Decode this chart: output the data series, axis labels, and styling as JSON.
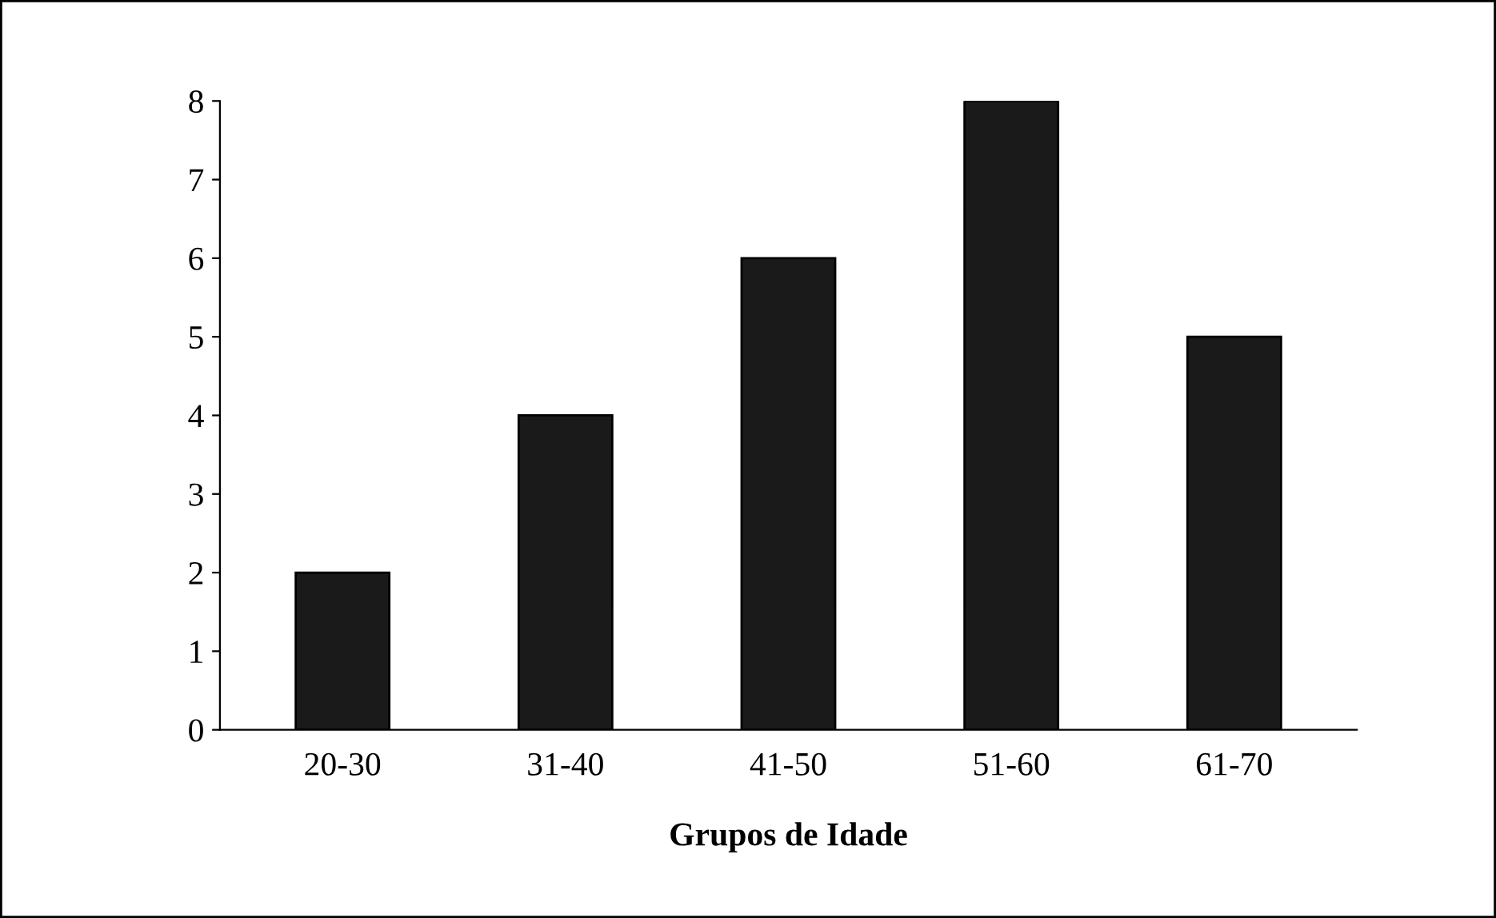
{
  "chart_data": {
    "type": "bar",
    "xlabel": "Grupos de Idade",
    "categories": [
      "20-30",
      "31-40",
      "41-50",
      "51-60",
      "61-70"
    ],
    "values": [
      2,
      4,
      6,
      8,
      5
    ],
    "color": "#1a1a1a",
    "ylim": [
      0,
      8
    ],
    "yticks": [
      0,
      1,
      2,
      3,
      4,
      5,
      6,
      7,
      8
    ],
    "grid": false,
    "legend": false
  }
}
